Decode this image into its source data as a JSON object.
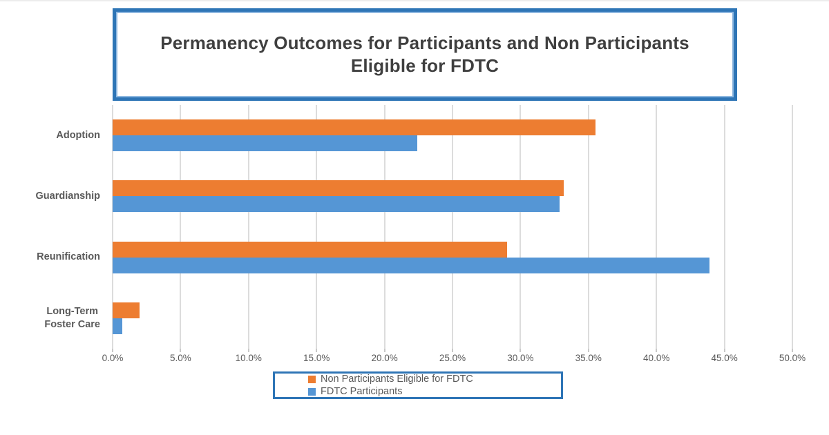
{
  "page": {
    "background": "#ffffff",
    "top_edge_color": "#ececec"
  },
  "title": {
    "line1": "Permanency Outcomes for Participants and Non Participants",
    "line2": "Eligible for FDTC",
    "text_color": "#3F3F3F",
    "outer_border_color": "#2E75B6",
    "inner_border_color": "#8FB8E0"
  },
  "legend": {
    "border_color": "#2E75B6",
    "position": "bottom",
    "items": [
      {
        "label": "Non Participants Eligible for FDTC",
        "color": "#ED7D31"
      },
      {
        "label": "FDTC Participants",
        "color": "#5596D5"
      }
    ]
  },
  "chart_data": {
    "type": "bar",
    "orientation": "horizontal",
    "title": "Permanency Outcomes for Participants and Non Participants Eligible for FDTC",
    "categories": [
      "Adoption",
      "Guardianship",
      "Reunification",
      "Long-Term Foster Care"
    ],
    "category_display_lines": [
      [
        "Adoption"
      ],
      [
        "Guardianship"
      ],
      [
        "Reunification"
      ],
      [
        "Long-Term",
        "Foster Care"
      ]
    ],
    "series": [
      {
        "name": "Non Participants Eligible for FDTC",
        "color": "#ED7D31",
        "values": [
          35.5,
          33.2,
          29.0,
          2.0
        ]
      },
      {
        "name": "FDTC Participants",
        "color": "#5596D5",
        "values": [
          22.4,
          32.9,
          43.9,
          0.7
        ]
      }
    ],
    "xlim": [
      0,
      50
    ],
    "x_tick_step": 5,
    "x_tick_labels": [
      "0.0%",
      "5.0%",
      "10.0%",
      "15.0%",
      "20.0%",
      "25.0%",
      "30.0%",
      "35.0%",
      "40.0%",
      "45.0%",
      "50.0%"
    ],
    "x_unit": "percent",
    "grid": true,
    "gridline_color": "#DCDCDC",
    "axis_label_color": "#595959",
    "legend_position": "bottom"
  }
}
